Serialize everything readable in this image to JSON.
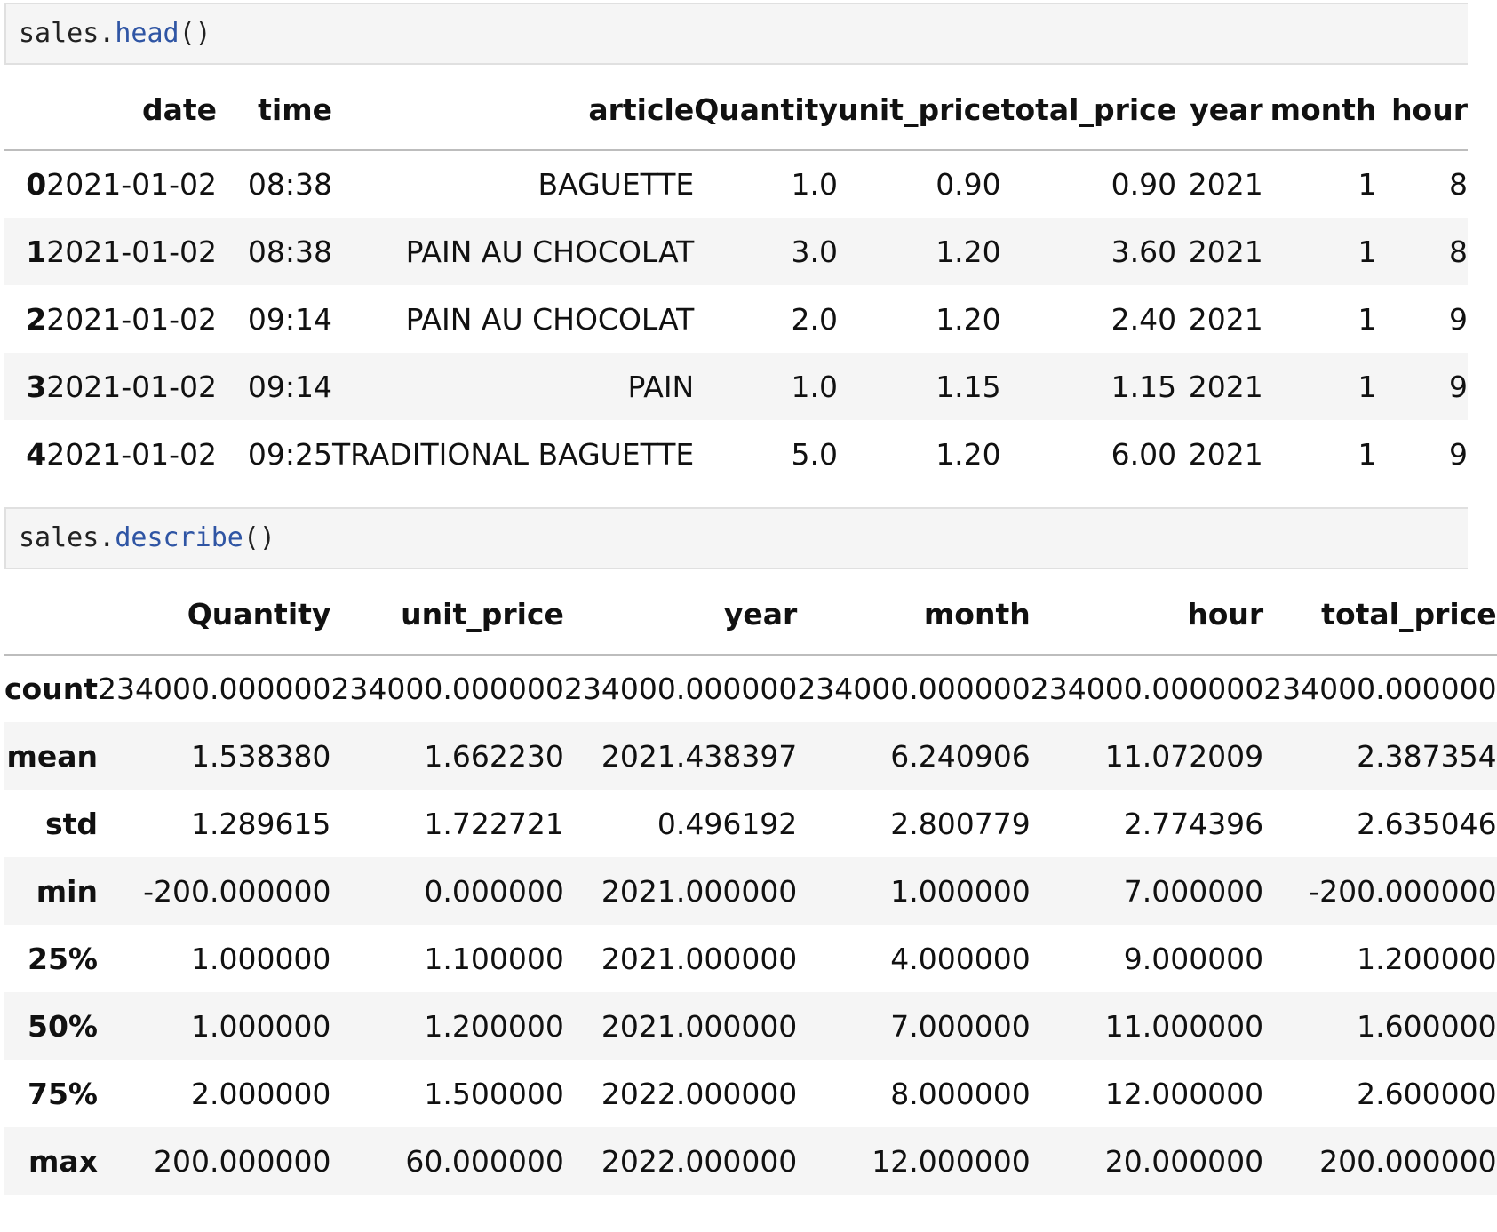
{
  "cells": [
    {
      "code_obj": "sales.",
      "code_fn": "head",
      "code_paren": "()"
    },
    {
      "code_obj": "sales.",
      "code_fn": "describe",
      "code_paren": "()"
    }
  ],
  "head_table": {
    "columns": [
      "",
      "date",
      "time",
      "article",
      "Quantity",
      "unit_price",
      "total_price",
      "year",
      "month",
      "hour"
    ],
    "rows": [
      [
        "0",
        "2021-01-02",
        "08:38",
        "BAGUETTE",
        "1.0",
        "0.90",
        "0.90",
        "2021",
        "1",
        "8"
      ],
      [
        "1",
        "2021-01-02",
        "08:38",
        "PAIN AU CHOCOLAT",
        "3.0",
        "1.20",
        "3.60",
        "2021",
        "1",
        "8"
      ],
      [
        "2",
        "2021-01-02",
        "09:14",
        "PAIN AU CHOCOLAT",
        "2.0",
        "1.20",
        "2.40",
        "2021",
        "1",
        "9"
      ],
      [
        "3",
        "2021-01-02",
        "09:14",
        "PAIN",
        "1.0",
        "1.15",
        "1.15",
        "2021",
        "1",
        "9"
      ],
      [
        "4",
        "2021-01-02",
        "09:25",
        "TRADITIONAL BAGUETTE",
        "5.0",
        "1.20",
        "6.00",
        "2021",
        "1",
        "9"
      ]
    ]
  },
  "describe_table": {
    "columns": [
      "",
      "Quantity",
      "unit_price",
      "year",
      "month",
      "hour",
      "total_price"
    ],
    "rows": [
      [
        "count",
        "234000.000000",
        "234000.000000",
        "234000.000000",
        "234000.000000",
        "234000.000000",
        "234000.000000"
      ],
      [
        "mean",
        "1.538380",
        "1.662230",
        "2021.438397",
        "6.240906",
        "11.072009",
        "2.387354"
      ],
      [
        "std",
        "1.289615",
        "1.722721",
        "0.496192",
        "2.800779",
        "2.774396",
        "2.635046"
      ],
      [
        "min",
        "-200.000000",
        "0.000000",
        "2021.000000",
        "1.000000",
        "7.000000",
        "-200.000000"
      ],
      [
        "25%",
        "1.000000",
        "1.100000",
        "2021.000000",
        "4.000000",
        "9.000000",
        "1.200000"
      ],
      [
        "50%",
        "1.000000",
        "1.200000",
        "2021.000000",
        "7.000000",
        "11.000000",
        "1.600000"
      ],
      [
        "75%",
        "2.000000",
        "1.500000",
        "2022.000000",
        "8.000000",
        "12.000000",
        "2.600000"
      ],
      [
        "max",
        "200.000000",
        "60.000000",
        "2022.000000",
        "12.000000",
        "20.000000",
        "200.000000"
      ]
    ]
  }
}
